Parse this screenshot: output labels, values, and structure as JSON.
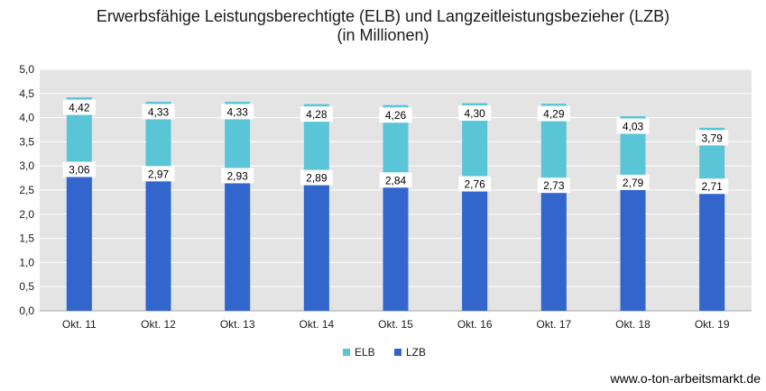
{
  "chart_data": {
    "type": "bar",
    "title": "Erwerbsfähige Leistungsberechtigte (ELB) und Langzeitleistungsbezieher (LZB)",
    "subtitle": "(in Millionen)",
    "categories": [
      "Okt. 11",
      "Okt. 12",
      "Okt. 13",
      "Okt. 14",
      "Okt. 15",
      "Okt. 16",
      "Okt. 17",
      "Okt. 18",
      "Okt. 19"
    ],
    "series": [
      {
        "name": "ELB",
        "color": "#5BC5D8",
        "values": [
          4.42,
          4.33,
          4.33,
          4.28,
          4.26,
          4.3,
          4.29,
          4.03,
          3.79
        ],
        "labels": [
          "4,42",
          "4,33",
          "4,33",
          "4,28",
          "4,26",
          "4,30",
          "4,29",
          "4,03",
          "3,79"
        ]
      },
      {
        "name": "LZB",
        "color": "#3366CC",
        "values": [
          3.06,
          2.97,
          2.93,
          2.89,
          2.84,
          2.76,
          2.73,
          2.79,
          2.71
        ],
        "labels": [
          "3,06",
          "2,97",
          "2,93",
          "2,89",
          "2,84",
          "2,76",
          "2,73",
          "2,79",
          "2,71"
        ]
      }
    ],
    "ylim": [
      0,
      5
    ],
    "yticks": [
      "0,0",
      "0,5",
      "1,0",
      "1,5",
      "2,0",
      "2,5",
      "3,0",
      "3,5",
      "4,0",
      "4,5",
      "5,0"
    ],
    "grid": true,
    "legend": "bottom",
    "plot_background": "#E4E4E4"
  },
  "source": "www.o-ton-arbeitsmarkt.de"
}
